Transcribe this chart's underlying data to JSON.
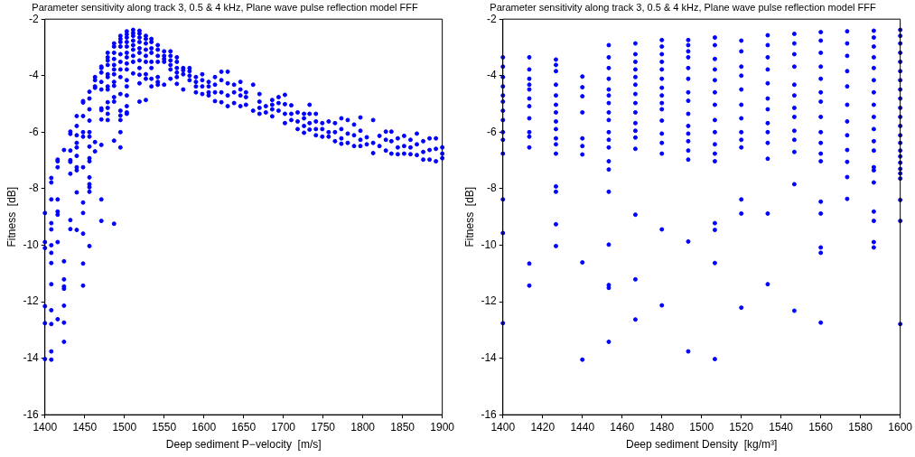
{
  "chart_data": [
    {
      "type": "scatter",
      "title": "Parameter sensitivity along track 3, 0.5 & 4 kHz, Plane wave pulse reflection model FFF",
      "xlabel": "Deep sediment P−velocity  [m/s]",
      "ylabel": "Fitness  [dB]",
      "xlim": [
        1400,
        1900
      ],
      "xticks": [
        1400,
        1450,
        1500,
        1550,
        1600,
        1650,
        1700,
        1750,
        1800,
        1850,
        1900
      ],
      "ylim": [
        -16,
        -2
      ],
      "yticks": [
        -16,
        -14,
        -12,
        -10,
        -8,
        -6,
        -4,
        -2
      ],
      "grid": false,
      "legend": false,
      "marker": "circle",
      "series": [
        {
          "color": "#0000ff",
          "x": [
            1400,
            1400,
            1400,
            1400,
            1400,
            1400,
            1408,
            1408,
            1408,
            1408,
            1408,
            1408,
            1408,
            1408,
            1408,
            1408,
            1408,
            1408,
            1408,
            1416,
            1416,
            1416,
            1416,
            1416,
            1416,
            1416,
            1416,
            1424,
            1424,
            1424,
            1424,
            1424,
            1424,
            1424,
            1424,
            1432,
            1432,
            1432,
            1432,
            1432,
            1432,
            1432,
            1432,
            1440,
            1440,
            1440,
            1440,
            1440,
            1440,
            1440,
            1440,
            1440,
            1440,
            1448,
            1448,
            1448,
            1448,
            1448,
            1448,
            1448,
            1448,
            1448,
            1448,
            1448,
            1456,
            1456,
            1456,
            1456,
            1456,
            1456,
            1456,
            1456,
            1456,
            1456,
            1456,
            1456,
            1456,
            1456,
            1463,
            1463,
            1463,
            1463,
            1463,
            1463,
            1471,
            1471,
            1471,
            1471,
            1471,
            1471,
            1471,
            1471,
            1471,
            1471,
            1471,
            1479,
            1479,
            1479,
            1479,
            1479,
            1479,
            1479,
            1479,
            1479,
            1479,
            1479,
            1479,
            1487,
            1487,
            1487,
            1487,
            1487,
            1487,
            1487,
            1487,
            1487,
            1487,
            1487,
            1487,
            1487,
            1495,
            1495,
            1495,
            1495,
            1495,
            1495,
            1495,
            1495,
            1495,
            1495,
            1495,
            1495,
            1495,
            1495,
            1503,
            1503,
            1503,
            1503,
            1503,
            1503,
            1503,
            1503,
            1503,
            1503,
            1503,
            1503,
            1503,
            1503,
            1503,
            1511,
            1511,
            1511,
            1511,
            1511,
            1511,
            1511,
            1511,
            1511,
            1519,
            1519,
            1519,
            1519,
            1519,
            1519,
            1519,
            1519,
            1519,
            1519,
            1519,
            1527,
            1527,
            1527,
            1527,
            1527,
            1527,
            1527,
            1527,
            1527,
            1534,
            1534,
            1534,
            1534,
            1534,
            1534,
            1534,
            1534,
            1542,
            1542,
            1542,
            1542,
            1542,
            1542,
            1542,
            1550,
            1550,
            1550,
            1550,
            1550,
            1558,
            1558,
            1558,
            1558,
            1558,
            1558,
            1566,
            1566,
            1566,
            1566,
            1566,
            1566,
            1574,
            1574,
            1574,
            1574,
            1582,
            1582,
            1582,
            1582,
            1590,
            1590,
            1590,
            1590,
            1598,
            1598,
            1598,
            1598,
            1606,
            1606,
            1606,
            1606,
            1614,
            1614,
            1614,
            1614,
            1622,
            1622,
            1622,
            1622,
            1630,
            1630,
            1630,
            1630,
            1638,
            1638,
            1638,
            1646,
            1646,
            1646,
            1646,
            1653,
            1653,
            1653,
            1662,
            1662,
            1670,
            1670,
            1670,
            1670,
            1678,
            1678,
            1686,
            1686,
            1686,
            1686,
            1694,
            1694,
            1694,
            1702,
            1702,
            1702,
            1702,
            1710,
            1710,
            1710,
            1718,
            1718,
            1718,
            1726,
            1726,
            1726,
            1726,
            1733,
            1733,
            1733,
            1733,
            1741,
            1741,
            1741,
            1741,
            1749,
            1749,
            1749,
            1757,
            1757,
            1757,
            1765,
            1765,
            1765,
            1773,
            1773,
            1773,
            1773,
            1781,
            1781,
            1781,
            1789,
            1789,
            1789,
            1797,
            1797,
            1797,
            1797,
            1805,
            1805,
            1813,
            1813,
            1813,
            1821,
            1821,
            1829,
            1829,
            1829,
            1836,
            1836,
            1836,
            1844,
            1844,
            1844,
            1852,
            1852,
            1852,
            1860,
            1860,
            1860,
            1868,
            1868,
            1868,
            1876,
            1876,
            1876,
            1884,
            1884,
            1884,
            1892,
            1892,
            1892,
            1900,
            1900,
            1900
          ],
          "values": [
            -8.86,
            -9.89,
            -10.1,
            -12.16,
            -12.76,
            -14.03,
            -7.62,
            -7.78,
            -8.38,
            -9.22,
            -9.44,
            -10.0,
            -10.27,
            -10.63,
            -11.38,
            -12.3,
            -12.79,
            -13.76,
            -14.05,
            -6.97,
            -7.03,
            -7.24,
            -8.38,
            -8.81,
            -8.92,
            -9.89,
            -12.62,
            -6.63,
            -10.57,
            -11.21,
            -11.46,
            -11.54,
            -12.14,
            -12.74,
            -13.42,
            -5.98,
            -6.06,
            -6.65,
            -6.99,
            -7.05,
            -7.47,
            -9.11,
            -9.43,
            -5.43,
            -5.78,
            -6.11,
            -6.38,
            -6.54,
            -6.84,
            -7.24,
            -7.35,
            -8.13,
            -9.46,
            -4.9,
            -4.95,
            -5.43,
            -6.0,
            -6.16,
            -7.24,
            -8.49,
            -8.86,
            -9.59,
            -10.65,
            -11.43,
            -4.57,
            -4.81,
            -5.19,
            -5.59,
            -6.0,
            -6.16,
            -6.51,
            -6.92,
            -7.03,
            -7.6,
            -7.84,
            -7.95,
            -8.11,
            -10.03,
            -4.05,
            -4.16,
            -4.38,
            -4.43,
            -6.35,
            -6.68,
            -3.68,
            -3.73,
            -3.89,
            -4.22,
            -4.49,
            -5.16,
            -5.22,
            -5.55,
            -6.45,
            -8.38,
            -9.14,
            -3.19,
            -3.35,
            -3.46,
            -3.62,
            -3.95,
            -4.05,
            -4.38,
            -4.49,
            -4.94,
            -5.14,
            -5.35,
            -5.57,
            -2.86,
            -2.97,
            -3.19,
            -3.41,
            -3.62,
            -3.78,
            -3.95,
            -4.22,
            -4.36,
            -4.76,
            -4.92,
            -6.3,
            -9.24,
            -2.59,
            -2.7,
            -2.81,
            -2.97,
            -3.24,
            -3.51,
            -3.78,
            -4.05,
            -4.65,
            -5.24,
            -5.41,
            -5.57,
            -6.0,
            -6.54,
            -2.43,
            -2.54,
            -2.65,
            -2.81,
            -2.97,
            -3.19,
            -3.35,
            -3.57,
            -3.78,
            -4.16,
            -4.38,
            -4.7,
            -5.08,
            -5.3,
            -5.35,
            -2.38,
            -2.49,
            -2.59,
            -2.76,
            -2.92,
            -3.08,
            -3.3,
            -3.51,
            -3.92,
            -2.41,
            -2.51,
            -2.65,
            -2.81,
            -3.03,
            -3.19,
            -3.46,
            -3.73,
            -3.97,
            -4.27,
            -4.92,
            -2.59,
            -2.7,
            -2.86,
            -3.08,
            -3.3,
            -3.51,
            -3.95,
            -4.11,
            -4.86,
            -2.7,
            -2.81,
            -3.03,
            -3.19,
            -3.51,
            -3.73,
            -4.11,
            -4.38,
            -2.92,
            -3.08,
            -3.3,
            -3.51,
            -4.05,
            -4.22,
            -4.32,
            -3.14,
            -3.3,
            -3.41,
            -3.51,
            -4.32,
            -3.14,
            -3.3,
            -3.46,
            -3.62,
            -3.78,
            -4.11,
            -3.35,
            -3.51,
            -3.73,
            -3.89,
            -4.05,
            -4.29,
            -3.73,
            -3.81,
            -3.95,
            -4.49,
            -3.73,
            -3.84,
            -4.0,
            -4.16,
            -4.05,
            -4.22,
            -4.38,
            -4.59,
            -3.95,
            -4.16,
            -4.38,
            -4.65,
            -4.22,
            -4.38,
            -4.59,
            -4.7,
            -4.05,
            -4.32,
            -4.59,
            -4.9,
            -3.86,
            -4.16,
            -4.59,
            -4.94,
            -3.86,
            -4.27,
            -4.7,
            -5.08,
            -4.32,
            -4.59,
            -4.97,
            -4.22,
            -4.49,
            -4.7,
            -5.08,
            -4.59,
            -4.76,
            -5.03,
            -4.32,
            -5.24,
            -4.65,
            -4.92,
            -5.14,
            -5.35,
            -5.08,
            -5.3,
            -4.86,
            -5.03,
            -5.19,
            -5.44,
            -4.76,
            -4.97,
            -5.24,
            -4.68,
            -5.01,
            -5.35,
            -5.68,
            -5.05,
            -5.35,
            -5.57,
            -5.3,
            -5.62,
            -5.89,
            -5.35,
            -5.51,
            -5.78,
            -6.02,
            -5.03,
            -5.35,
            -5.68,
            -5.91,
            -5.35,
            -5.62,
            -5.89,
            -6.11,
            -5.68,
            -5.89,
            -6.16,
            -5.62,
            -6.0,
            -6.16,
            -5.68,
            -6.0,
            -6.32,
            -5.51,
            -5.89,
            -6.22,
            -6.41,
            -5.57,
            -6.05,
            -6.38,
            -5.73,
            -6.11,
            -6.49,
            -5.48,
            -5.95,
            -6.27,
            -6.49,
            -6.18,
            -6.43,
            -5.57,
            -6.38,
            -6.74,
            -6.13,
            -6.49,
            -5.98,
            -6.27,
            -6.65,
            -5.98,
            -6.32,
            -6.76,
            -6.22,
            -6.54,
            -6.78,
            -6.13,
            -6.49,
            -6.76,
            -6.27,
            -6.54,
            -6.78,
            -6.05,
            -6.43,
            -6.81,
            -6.32,
            -6.7,
            -6.97,
            -6.22,
            -6.63,
            -6.97,
            -6.22,
            -6.59,
            -7.03,
            -6.54,
            -6.76,
            -6.92
          ]
        }
      ]
    },
    {
      "type": "scatter",
      "title": "Parameter sensitivity along track 3, 0.5 & 4 kHz, Plane wave pulse reflection model FFF",
      "xlabel": "Deep sediment Density  [kg/m³]",
      "ylabel": "Fitness  [dB]",
      "xlim": [
        1400,
        1600
      ],
      "xticks": [
        1400,
        1420,
        1440,
        1460,
        1480,
        1500,
        1520,
        1540,
        1560,
        1580,
        1600
      ],
      "ylim": [
        -16,
        -2
      ],
      "yticks": [
        -16,
        -14,
        -12,
        -10,
        -8,
        -6,
        -4,
        -2
      ],
      "grid": false,
      "legend": false,
      "marker": "circle",
      "series": [
        {
          "color": "#0000ff",
          "x": [
            1400,
            1400,
            1400,
            1400,
            1400,
            1400,
            1400,
            1400,
            1400,
            1400,
            1400,
            1400,
            1400,
            1400,
            1413.3,
            1413.3,
            1413.3,
            1413.3,
            1413.3,
            1413.3,
            1413.3,
            1413.3,
            1413.3,
            1413.3,
            1413.3,
            1413.3,
            1413.3,
            1426.7,
            1426.7,
            1426.7,
            1426.7,
            1426.7,
            1426.7,
            1426.7,
            1426.7,
            1426.7,
            1426.7,
            1426.7,
            1426.7,
            1426.7,
            1426.7,
            1426.7,
            1426.7,
            1440,
            1440,
            1440,
            1440,
            1440,
            1440,
            1440,
            1440,
            1440,
            1453.3,
            1453.3,
            1453.3,
            1453.3,
            1453.3,
            1453.3,
            1453.3,
            1453.3,
            1453.3,
            1453.3,
            1453.3,
            1453.3,
            1453.3,
            1453.3,
            1453.3,
            1453.3,
            1453.3,
            1453.3,
            1453.3,
            1466.7,
            1466.7,
            1466.7,
            1466.7,
            1466.7,
            1466.7,
            1466.7,
            1466.7,
            1466.7,
            1466.7,
            1466.7,
            1466.7,
            1466.7,
            1466.7,
            1466.7,
            1466.7,
            1480,
            1480,
            1480,
            1480,
            1480,
            1480,
            1480,
            1480,
            1480,
            1480,
            1480,
            1480,
            1480,
            1480,
            1480,
            1480,
            1493.3,
            1493.3,
            1493.3,
            1493.3,
            1493.3,
            1493.3,
            1493.3,
            1493.3,
            1493.3,
            1493.3,
            1493.3,
            1493.3,
            1493.3,
            1493.3,
            1493.3,
            1493.3,
            1506.7,
            1506.7,
            1506.7,
            1506.7,
            1506.7,
            1506.7,
            1506.7,
            1506.7,
            1506.7,
            1506.7,
            1506.7,
            1506.7,
            1506.7,
            1506.7,
            1506.7,
            1506.7,
            1520,
            1520,
            1520,
            1520,
            1520,
            1520,
            1520,
            1520,
            1520,
            1520,
            1520,
            1520,
            1520,
            1533.3,
            1533.3,
            1533.3,
            1533.3,
            1533.3,
            1533.3,
            1533.3,
            1533.3,
            1533.3,
            1533.3,
            1533.3,
            1533.3,
            1533.3,
            1546.7,
            1546.7,
            1546.7,
            1546.7,
            1546.7,
            1546.7,
            1546.7,
            1546.7,
            1546.7,
            1546.7,
            1546.7,
            1546.7,
            1546.7,
            1560,
            1560,
            1560,
            1560,
            1560,
            1560,
            1560,
            1560,
            1560,
            1560,
            1560,
            1560,
            1560,
            1560,
            1560,
            1560,
            1560,
            1573.3,
            1573.3,
            1573.3,
            1573.3,
            1573.3,
            1573.3,
            1573.3,
            1573.3,
            1573.3,
            1573.3,
            1573.3,
            1573.3,
            1586.7,
            1586.7,
            1586.7,
            1586.7,
            1586.7,
            1586.7,
            1586.7,
            1586.7,
            1586.7,
            1586.7,
            1586.7,
            1586.7,
            1586.7,
            1586.7,
            1586.7,
            1586.7,
            1586.7,
            1586.7,
            1586.7,
            1600,
            1600,
            1600,
            1600,
            1600,
            1600,
            1600,
            1600,
            1600,
            1600,
            1600,
            1600,
            1600,
            1600,
            1600,
            1600,
            1600,
            1600,
            1600,
            1600,
            1600,
            1600,
            1600
          ],
          "values": [
            -3.35,
            -3.68,
            -4.05,
            -4.38,
            -4.7,
            -4.92,
            -5.24,
            -5.57,
            -6.0,
            -6.27,
            -6.76,
            -8.38,
            -9.57,
            -12.76,
            -3.35,
            -3.78,
            -4.11,
            -4.32,
            -4.49,
            -4.81,
            -5.08,
            -5.51,
            -6.0,
            -6.16,
            -6.54,
            -10.65,
            -11.43,
            -3.43,
            -3.62,
            -3.84,
            -4.32,
            -4.7,
            -5.03,
            -5.3,
            -5.62,
            -5.89,
            -6.22,
            -6.43,
            -6.76,
            -7.92,
            -8.11,
            -9.26,
            -10.03,
            -4.03,
            -4.41,
            -4.73,
            -5.3,
            -6.22,
            -6.49,
            -6.79,
            -10.61,
            -14.05,
            -2.92,
            -3.35,
            -3.73,
            -4.11,
            -4.49,
            -4.7,
            -4.97,
            -5.3,
            -5.57,
            -6.0,
            -6.27,
            -6.54,
            -7.03,
            -7.32,
            -8.11,
            -9.98,
            -11.41,
            -11.51,
            -13.42,
            -2.86,
            -3.24,
            -3.51,
            -3.78,
            -4.05,
            -4.32,
            -4.65,
            -4.97,
            -5.3,
            -5.68,
            -5.95,
            -6.19,
            -6.59,
            -8.92,
            -11.21,
            -12.63,
            -2.74,
            -2.97,
            -3.24,
            -3.51,
            -3.78,
            -4.11,
            -4.43,
            -4.7,
            -4.97,
            -5.19,
            -5.59,
            -6.05,
            -6.38,
            -6.76,
            -9.44,
            -12.13,
            -2.74,
            -2.92,
            -3.14,
            -3.35,
            -3.73,
            -4.11,
            -4.59,
            -4.89,
            -5.35,
            -5.78,
            -6.05,
            -6.32,
            -6.65,
            -6.97,
            -9.87,
            -13.76,
            -2.65,
            -2.92,
            -3.41,
            -3.78,
            -4.16,
            -4.59,
            -5.03,
            -5.57,
            -6.0,
            -6.43,
            -6.76,
            -7.03,
            -9.22,
            -9.46,
            -10.63,
            -14.03,
            -2.76,
            -3.14,
            -3.68,
            -4.0,
            -4.49,
            -5.03,
            -5.51,
            -6.0,
            -6.27,
            -6.54,
            -8.38,
            -8.88,
            -12.21,
            -2.57,
            -2.92,
            -3.35,
            -3.78,
            -4.27,
            -4.81,
            -5.19,
            -5.68,
            -6.0,
            -6.38,
            -6.94,
            -8.88,
            -11.38,
            -2.52,
            -2.86,
            -3.24,
            -3.68,
            -4.32,
            -4.7,
            -5.14,
            -5.46,
            -5.95,
            -6.27,
            -6.7,
            -7.84,
            -12.32,
            -2.46,
            -2.76,
            -3.19,
            -3.68,
            -4.11,
            -4.59,
            -4.92,
            -5.46,
            -6.0,
            -6.38,
            -6.76,
            -7.03,
            -8.46,
            -8.88,
            -10.08,
            -10.27,
            -12.74,
            -2.43,
            -2.86,
            -3.3,
            -3.84,
            -4.38,
            -5.03,
            -5.62,
            -6.11,
            -6.63,
            -7.05,
            -7.59,
            -8.36,
            -2.41,
            -2.65,
            -2.97,
            -3.35,
            -3.73,
            -4.16,
            -4.59,
            -5.03,
            -5.46,
            -5.89,
            -6.32,
            -6.65,
            -7.24,
            -7.35,
            -7.78,
            -8.81,
            -9.14,
            -9.89,
            -10.08,
            -2.38,
            -2.59,
            -2.86,
            -3.19,
            -3.51,
            -3.84,
            -4.16,
            -4.49,
            -4.81,
            -5.14,
            -5.46,
            -5.78,
            -6.11,
            -6.38,
            -6.65,
            -6.86,
            -7.08,
            -7.3,
            -7.46,
            -7.64,
            -8.4,
            -9.14,
            -12.79
          ]
        }
      ]
    }
  ]
}
